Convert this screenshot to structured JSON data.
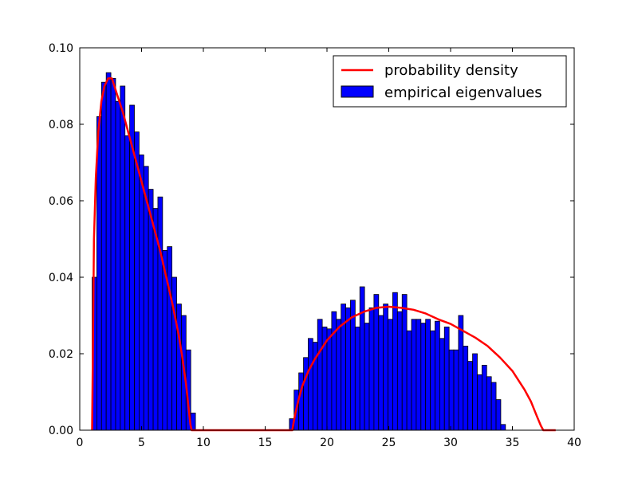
{
  "chart_data": {
    "type": "bar",
    "title": "",
    "xlabel": "",
    "ylabel": "",
    "xlim": [
      0,
      40
    ],
    "ylim": [
      0,
      0.1
    ],
    "x_ticks": [
      0,
      5,
      10,
      15,
      20,
      25,
      30,
      35,
      40
    ],
    "x_tick_labels": [
      "0",
      "5",
      "10",
      "15",
      "20",
      "25",
      "30",
      "35",
      "40"
    ],
    "y_ticks": [
      0,
      0.02,
      0.04,
      0.06,
      0.08,
      0.1
    ],
    "y_tick_labels": [
      "0.00",
      "0.02",
      "0.04",
      "0.06",
      "0.08",
      "0.10"
    ],
    "grid": false,
    "legend": {
      "placement": "top-right",
      "entries": [
        "probability density",
        "empirical eigenvalues"
      ]
    },
    "series": [
      {
        "name": "empirical eigenvalues",
        "kind": "histogram",
        "color": "#0000ff",
        "edge_color": "#000000",
        "bin_start": 1.0,
        "bin_width": 0.38,
        "values": [
          0.04,
          0.082,
          0.091,
          0.0935,
          0.092,
          0.086,
          0.09,
          0.077,
          0.085,
          0.078,
          0.072,
          0.069,
          0.063,
          0.058,
          0.061,
          0.047,
          0.048,
          0.04,
          0.033,
          0.03,
          0.021,
          0.0045,
          0,
          0,
          0,
          0,
          0,
          0,
          0,
          0,
          0,
          0,
          0,
          0,
          0,
          0,
          0,
          0,
          0,
          0,
          0,
          0,
          0.003,
          0.0105,
          0.015,
          0.019,
          0.024,
          0.023,
          0.029,
          0.027,
          0.0265,
          0.031,
          0.029,
          0.033,
          0.032,
          0.034,
          0.027,
          0.0375,
          0.028,
          0.032,
          0.0355,
          0.03,
          0.033,
          0.029,
          0.036,
          0.031,
          0.0355,
          0.026,
          0.029,
          0.029,
          0.028,
          0.029,
          0.026,
          0.0285,
          0.024,
          0.027,
          0.021,
          0.021,
          0.03,
          0.022,
          0.018,
          0.02,
          0.0145,
          0.017,
          0.014,
          0.0125,
          0.008,
          0.0015
        ]
      },
      {
        "name": "probability density",
        "kind": "line",
        "color": "#ff0000",
        "x": [
          1.0,
          1.15,
          1.3,
          1.5,
          1.75,
          2.0,
          2.3,
          2.6,
          3.0,
          3.5,
          4.0,
          4.5,
          5.0,
          5.5,
          6.0,
          6.5,
          7.0,
          7.5,
          8.0,
          8.3,
          8.6,
          8.8,
          8.95,
          9.05,
          9.2,
          10,
          12,
          14,
          16,
          17.2,
          17.3,
          17.45,
          17.7,
          18.0,
          18.5,
          19.0,
          19.5,
          20,
          21,
          22,
          23,
          24,
          25,
          26,
          27,
          28,
          29,
          30,
          31,
          32,
          33,
          34,
          35,
          35.5,
          36,
          36.5,
          37,
          37.3,
          37.5,
          37.6,
          38.5
        ],
        "y": [
          0.0,
          0.05,
          0.066,
          0.078,
          0.086,
          0.09,
          0.092,
          0.092,
          0.088,
          0.083,
          0.077,
          0.071,
          0.065,
          0.059,
          0.053,
          0.047,
          0.04,
          0.033,
          0.025,
          0.019,
          0.012,
          0.006,
          0.0015,
          0.0,
          0.0,
          0.0,
          0.0,
          0.0,
          0.0,
          0.0,
          0.002,
          0.0045,
          0.008,
          0.0115,
          0.0155,
          0.0185,
          0.021,
          0.0235,
          0.027,
          0.0295,
          0.031,
          0.032,
          0.0323,
          0.032,
          0.0315,
          0.0305,
          0.029,
          0.0278,
          0.026,
          0.0242,
          0.022,
          0.019,
          0.0155,
          0.013,
          0.0105,
          0.0075,
          0.0035,
          0.0012,
          0.0,
          0.0,
          0.0
        ]
      }
    ]
  }
}
